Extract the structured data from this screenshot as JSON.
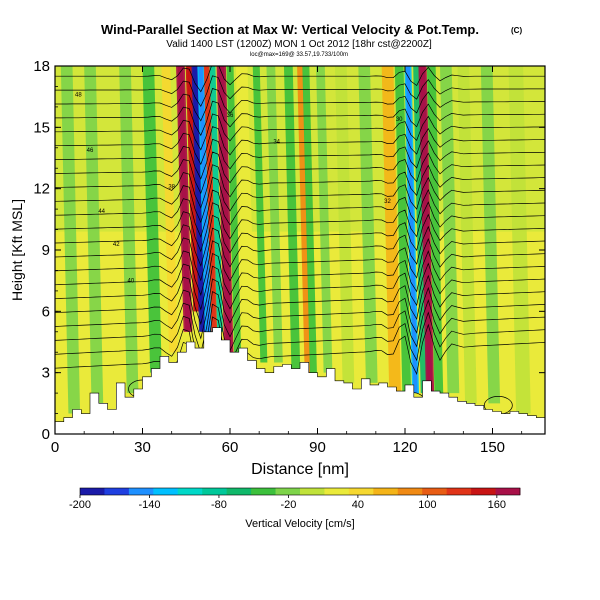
{
  "chart_data": {
    "type": "heatmap",
    "title": "Wind-Parallel Section at Max W: Vertical Velocity & Pot.Temp.",
    "title_mark": "(C)",
    "subtitle": "Valid 1400 LST (1200Z) MON 1 Oct 2012 [18hr cst@2200Z]",
    "subtitle2": "loc@max=169@ 33.57,19.733/100m",
    "xlabel": "Distance [nm]",
    "ylabel": "Height [Kft MSL]",
    "xlim": [
      0,
      168
    ],
    "ylim": [
      0,
      18
    ],
    "x_ticks": [
      0,
      30,
      60,
      90,
      120,
      150
    ],
    "y_ticks": [
      0,
      3,
      6,
      9,
      12,
      15,
      18
    ],
    "colorbar": {
      "label": "Vertical Velocity [cm/s]",
      "ticks": [
        -200,
        -140,
        -80,
        -20,
        40,
        100,
        160
      ],
      "min": -200,
      "max": 180,
      "colors": [
        "#1a1aa8",
        "#1f3fe0",
        "#1e90ff",
        "#00c0ff",
        "#00d8c8",
        "#00c89a",
        "#10b86a",
        "#3cc03c",
        "#7ed44a",
        "#c0e23a",
        "#eaea3a",
        "#f6d830",
        "#f4b418",
        "#f08a14",
        "#e85c14",
        "#e03418",
        "#c81414",
        "#a81048"
      ]
    },
    "terrain_profile": {
      "x": [
        0,
        3,
        6,
        9,
        12,
        15,
        18,
        21,
        24,
        27,
        30,
        33,
        36,
        39,
        42,
        45,
        48,
        51,
        54,
        57,
        60,
        63,
        66,
        69,
        72,
        75,
        78,
        81,
        84,
        87,
        90,
        93,
        96,
        99,
        102,
        105,
        108,
        111,
        114,
        117,
        120,
        123,
        126,
        129,
        132,
        135,
        138,
        141,
        144,
        147,
        150,
        153,
        156,
        159,
        162,
        165,
        168
      ],
      "y": [
        0.6,
        0.8,
        1.2,
        1.0,
        2.0,
        1.5,
        1.2,
        2.5,
        1.8,
        2.2,
        2.8,
        3.2,
        3.8,
        3.5,
        4.0,
        4.5,
        4.2,
        5.0,
        5.2,
        4.6,
        4.0,
        4.2,
        3.6,
        3.2,
        3.0,
        3.3,
        3.4,
        3.2,
        3.5,
        3.0,
        2.8,
        3.2,
        2.6,
        2.5,
        2.2,
        2.7,
        2.4,
        2.5,
        2.3,
        2.1,
        2.4,
        1.8,
        2.6,
        2.1,
        2.0,
        1.8,
        1.6,
        1.5,
        1.4,
        1.2,
        1.1,
        1.0,
        1.1,
        1.0,
        0.9,
        0.8,
        0.8
      ]
    },
    "velocity_features": [
      {
        "x": 45,
        "y_top": 18,
        "y_bottom": 5,
        "value": 170,
        "width": 1.5
      },
      {
        "x": 48,
        "y_top": 18,
        "y_bottom": 6,
        "value": 140,
        "width": 1.2
      },
      {
        "x": 50,
        "y_top": 18,
        "y_bottom": 5,
        "value": -200,
        "width": 1.2
      },
      {
        "x": 52,
        "y_top": 18,
        "y_bottom": 5,
        "value": -130,
        "width": 1.2
      },
      {
        "x": 54,
        "y_top": 18,
        "y_bottom": 5,
        "value": 120,
        "width": 1.0
      },
      {
        "x": 56,
        "y_top": 18,
        "y_bottom": 5,
        "value": -80,
        "width": 1.0
      },
      {
        "x": 59,
        "y_top": 18,
        "y_bottom": 4,
        "value": 170,
        "width": 1.6
      },
      {
        "x": 62,
        "y_top": 18,
        "y_bottom": 4,
        "value": -40,
        "width": 1.2
      },
      {
        "x": 66,
        "y_top": 18,
        "y_bottom": 4,
        "value": 30,
        "width": 2.0
      },
      {
        "x": 71,
        "y_top": 18,
        "y_bottom": 3.5,
        "value": -50,
        "width": 1.2
      },
      {
        "x": 76,
        "y_top": 18,
        "y_bottom": 3.5,
        "value": -25,
        "width": 1.5
      },
      {
        "x": 82,
        "y_top": 18,
        "y_bottom": 3,
        "value": -45,
        "width": 1.5
      },
      {
        "x": 86,
        "y_top": 18,
        "y_bottom": 3,
        "value": 80,
        "width": 1.0
      },
      {
        "x": 88,
        "y_top": 18,
        "y_bottom": 3,
        "value": -50,
        "width": 1.2
      },
      {
        "x": 93,
        "y_top": 18,
        "y_bottom": 3,
        "value": -20,
        "width": 1.5
      },
      {
        "x": 100,
        "y_top": 18,
        "y_bottom": 2.5,
        "value": -10,
        "width": 2.0
      },
      {
        "x": 108,
        "y_top": 18,
        "y_bottom": 2.5,
        "value": -30,
        "width": 2.0
      },
      {
        "x": 116,
        "y_top": 18,
        "y_bottom": 2,
        "value": 60,
        "width": 2.0
      },
      {
        "x": 120,
        "y_top": 18,
        "y_bottom": 2,
        "value": -40,
        "width": 1.5
      },
      {
        "x": 123,
        "y_top": 18,
        "y_bottom": 2,
        "value": -120,
        "width": 1.2
      },
      {
        "x": 126,
        "y_top": 18,
        "y_bottom": 2,
        "value": -70,
        "width": 1.2
      },
      {
        "x": 128,
        "y_top": 18,
        "y_bottom": 2,
        "value": 160,
        "width": 1.4
      },
      {
        "x": 131,
        "y_top": 18,
        "y_bottom": 2,
        "value": -40,
        "width": 1.5
      },
      {
        "x": 136,
        "y_top": 18,
        "y_bottom": 2,
        "value": -20,
        "width": 2.0
      },
      {
        "x": 142,
        "y_top": 18,
        "y_bottom": 1.5,
        "value": -10,
        "width": 2.0
      },
      {
        "x": 150,
        "y_top": 18,
        "y_bottom": 1.5,
        "value": -25,
        "width": 2.0
      },
      {
        "x": 160,
        "y_top": 18,
        "y_bottom": 1.0,
        "value": -5,
        "width": 2.5
      },
      {
        "x": 6,
        "y_top": 18,
        "y_bottom": 1.0,
        "value": -20,
        "width": 2.0
      },
      {
        "x": 14,
        "y_top": 18,
        "y_bottom": 1.0,
        "value": -30,
        "width": 2.0
      },
      {
        "x": 26,
        "y_top": 18,
        "y_bottom": 2.0,
        "value": -20,
        "width": 2.0
      },
      {
        "x": 34,
        "y_top": 18,
        "y_bottom": 3.0,
        "value": -40,
        "width": 2.0
      },
      {
        "x": 40,
        "y_top": 18,
        "y_bottom": 4.0,
        "value": 40,
        "width": 1.5
      }
    ],
    "isentrope_labels": [
      "48",
      "46",
      "44",
      "42",
      "40",
      "38",
      "36",
      "34",
      "32",
      "30"
    ]
  }
}
